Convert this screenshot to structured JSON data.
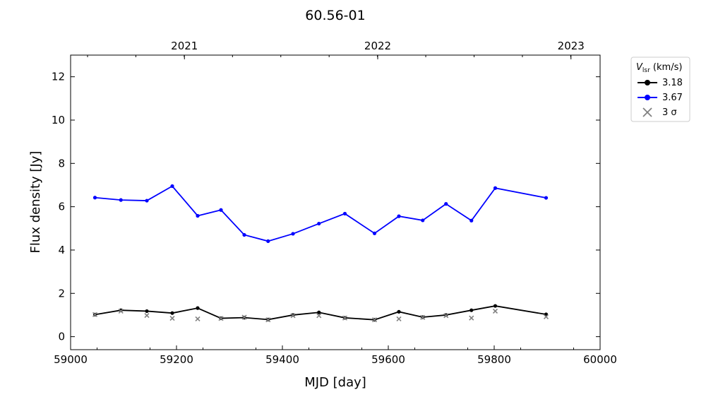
{
  "chart_data": {
    "type": "line",
    "title": "60.56-01",
    "xlabel": "MJD [day]",
    "ylabel": "Flux density [Jy]",
    "xlim": [
      59000,
      60000
    ],
    "ylim": [
      -0.6,
      13
    ],
    "xticks": [
      59000,
      59200,
      59400,
      59600,
      59800,
      60000
    ],
    "yticks": [
      0,
      2,
      4,
      6,
      8,
      10,
      12
    ],
    "top_axis": {
      "ticks": [
        {
          "label": "2021",
          "mjd": 59215
        },
        {
          "label": "2022",
          "mjd": 59580
        },
        {
          "label": "2023",
          "mjd": 59945
        }
      ]
    },
    "legend": {
      "title_main": "V",
      "title_sub": "lsr",
      "title_unit": " (km/s)",
      "position": "outside-top-right",
      "entries": [
        {
          "label": "3.18",
          "kind": "line",
          "color": "#000000"
        },
        {
          "label": "3.67",
          "kind": "line",
          "color": "#0000ff"
        },
        {
          "label": "3 σ",
          "kind": "cross",
          "color": "#808080"
        }
      ]
    },
    "series": [
      {
        "name": "3.18",
        "color": "#000000",
        "x": [
          59046,
          59095,
          59144,
          59192,
          59240,
          59284,
          59328,
          59373,
          59420,
          59469,
          59518,
          59574,
          59620,
          59665,
          59709,
          59757,
          59802,
          59898
        ],
        "y": [
          1.02,
          1.22,
          1.18,
          1.09,
          1.32,
          0.85,
          0.88,
          0.79,
          1.0,
          1.12,
          0.87,
          0.78,
          1.15,
          0.9,
          1.0,
          1.22,
          1.42,
          1.03
        ]
      },
      {
        "name": "3.67",
        "color": "#0000ff",
        "x": [
          59046,
          59095,
          59144,
          59192,
          59240,
          59284,
          59328,
          59373,
          59420,
          59469,
          59518,
          59574,
          59620,
          59665,
          59709,
          59757,
          59802,
          59898
        ],
        "y": [
          6.42,
          6.31,
          6.28,
          6.95,
          5.58,
          5.85,
          4.7,
          4.41,
          4.75,
          5.22,
          5.68,
          4.77,
          5.56,
          5.37,
          6.13,
          5.36,
          6.86,
          6.41
        ]
      },
      {
        "name": "3 σ",
        "color": "#808080",
        "marker": "x",
        "x": [
          59046,
          59095,
          59144,
          59192,
          59240,
          59284,
          59328,
          59373,
          59420,
          59469,
          59518,
          59574,
          59620,
          59665,
          59709,
          59757,
          59802,
          59898
        ],
        "y": [
          1.02,
          1.18,
          0.98,
          0.85,
          0.82,
          0.84,
          0.9,
          0.78,
          0.97,
          0.97,
          0.86,
          0.78,
          0.82,
          0.89,
          0.97,
          0.86,
          1.18,
          0.92
        ]
      }
    ]
  }
}
